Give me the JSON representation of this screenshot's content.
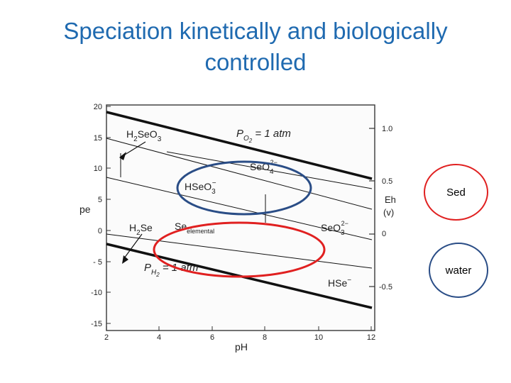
{
  "slide": {
    "title_line1": "Speciation kinetically and biologically",
    "title_line2": "controlled"
  },
  "diagram": {
    "y_axis_label": "pe",
    "x_axis_label": "pH",
    "right_axis_label_line1": "Eh",
    "right_axis_label_line2": "(v)",
    "y_ticks": [
      "20",
      "15",
      "10",
      "5",
      "0",
      "- 5",
      "-10",
      "-15"
    ],
    "x_ticks": [
      "2",
      "4",
      "6",
      "8",
      "10",
      "12"
    ],
    "right_ticks": [
      "1.0",
      "0.5",
      "0",
      "-0.5"
    ],
    "species": {
      "po2": "P",
      "po2_sub": "O",
      "po2_sub2": "2",
      "po2_rest": " = 1 atm",
      "ph2": "P",
      "ph2_sub": "H",
      "ph2_sub2": "2",
      "ph2_rest": " = 1 atm",
      "h2seo3": "H",
      "h2seo3_sub1": "2",
      "h2seo3_mid": "SeO",
      "h2seo3_sub2": "3",
      "seo4": "SeO",
      "seo4_sub": "4",
      "seo4_sup": "2−",
      "hseo3": "HSeO",
      "hseo3_sub": "3",
      "hseo3_sup": "−",
      "h2se": "H",
      "h2se_sub": "2",
      "h2se_rest": "Se",
      "se": "Se",
      "se_sub": "elemental",
      "seo3": "SeO",
      "seo3_sub": "3",
      "seo3_sup": "2−",
      "hse": "HSe",
      "hse_sup": "−"
    },
    "colors": {
      "water_ellipse": "#2a4d86",
      "sed_ellipse": "#e02020"
    }
  },
  "legend": {
    "sed_label": "Sed",
    "water_label": "water"
  }
}
